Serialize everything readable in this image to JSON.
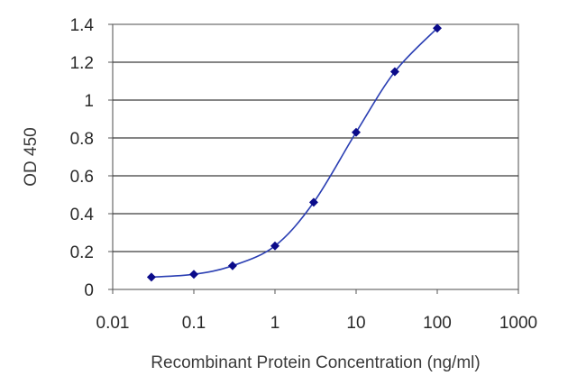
{
  "chart_data": {
    "type": "line",
    "title": "",
    "xlabel": "Recombinant Protein Concentration (ng/ml)",
    "ylabel": "OD 450",
    "x_scale": "log",
    "xlim": [
      0.01,
      1000
    ],
    "ylim": [
      0,
      1.4
    ],
    "x_ticks": [
      0.01,
      0.1,
      1,
      10,
      100,
      1000
    ],
    "x_tick_labels": [
      "0.01",
      "0.1",
      "1",
      "10",
      "100",
      "1000"
    ],
    "y_ticks": [
      0,
      0.2,
      0.4,
      0.6,
      0.8,
      1,
      1.2,
      1.4
    ],
    "y_tick_labels": [
      "0",
      "0.2",
      "0.4",
      "0.6",
      "0.8",
      "1",
      "1.2",
      "1.4"
    ],
    "grid": "horizontal",
    "series": [
      {
        "x": [
          0.03,
          0.1,
          0.3,
          1,
          3,
          10,
          30,
          100
        ],
        "y": [
          0.065,
          0.08,
          0.125,
          0.23,
          0.46,
          0.83,
          1.15,
          1.38
        ],
        "color": "#2b3fb3",
        "marker_color": "#0b0b8a",
        "marker": "diamond"
      }
    ]
  }
}
